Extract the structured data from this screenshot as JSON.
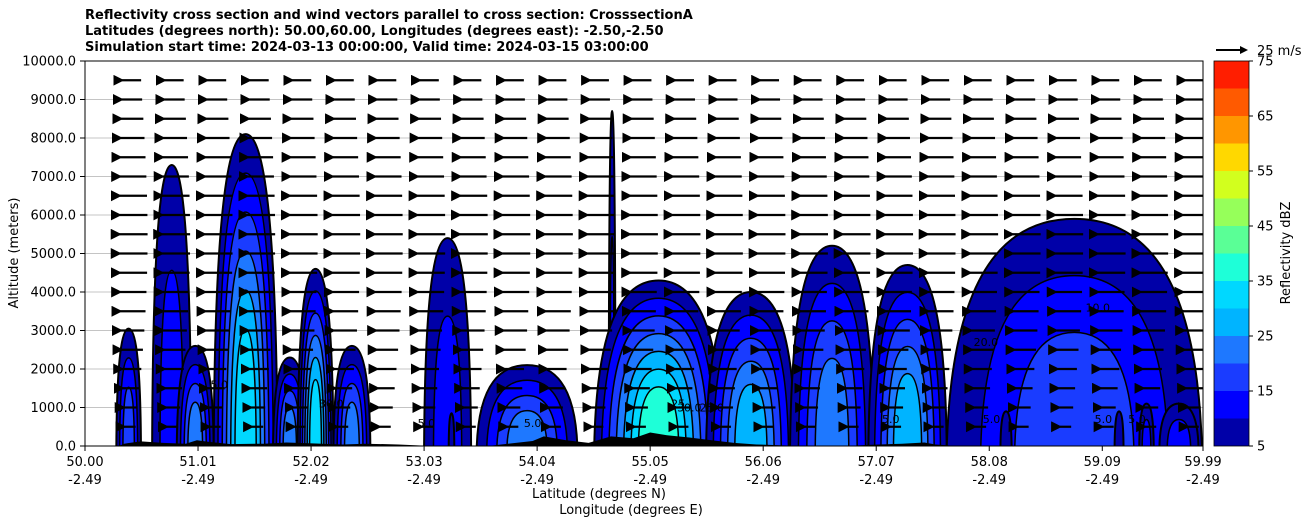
{
  "chart_data": {
    "type": "contour",
    "title_lines": [
      "Reflectivity cross section and wind vectors parallel to cross section: CrosssectionA",
      "Latitudes (degrees north): 50.00,60.00, Longitudes (degrees east): -2.50,-2.50",
      "Simulation start time: 2024-03-13 00:00:00, Valid time: 2024-03-15 03:00:00"
    ],
    "ylabel": "Altitude (meters)",
    "xlabel_lat": "Latitude (degrees N)",
    "xlabel_lon": "Longitude (degrees E)",
    "ylim": [
      0,
      10000
    ],
    "xlim": [
      50.0,
      59.99
    ],
    "y_ticks": [
      "0.0",
      "1000.0",
      "2000.0",
      "3000.0",
      "4000.0",
      "5000.0",
      "6000.0",
      "7000.0",
      "8000.0",
      "9000.0",
      "10000.0"
    ],
    "y_tick_values": [
      0,
      1000,
      2000,
      3000,
      4000,
      5000,
      6000,
      7000,
      8000,
      9000,
      10000
    ],
    "x_tick_values": [
      50.0,
      51.01,
      52.02,
      53.03,
      54.04,
      55.05,
      56.06,
      57.07,
      58.08,
      59.09,
      59.99
    ],
    "x_ticks_lat": [
      "50.00",
      "51.01",
      "52.02",
      "53.03",
      "54.04",
      "55.05",
      "56.06",
      "57.07",
      "58.08",
      "59.09",
      "59.99"
    ],
    "x_ticks_lon": [
      "-2.49",
      "-2.49",
      "-2.49",
      "-2.49",
      "-2.49",
      "-2.49",
      "-2.49",
      "-2.49",
      "-2.49",
      "-2.49",
      "-2.49"
    ],
    "colorbar": {
      "label": "Reflectivity dBZ",
      "range": [
        5,
        75
      ],
      "levels": [
        5,
        10,
        15,
        20,
        25,
        30,
        35,
        40,
        45,
        50,
        55,
        60,
        65,
        70,
        75
      ],
      "tick_labels": [
        "5",
        "15",
        "25",
        "35",
        "45",
        "55",
        "65",
        "75"
      ],
      "tick_values": [
        5,
        15,
        25,
        35,
        45,
        55,
        65,
        75
      ],
      "colors": [
        "#0000a8",
        "#0000ff",
        "#1a3cff",
        "#1e78ff",
        "#00b4ff",
        "#00d8ff",
        "#1effd8",
        "#5aff96",
        "#96ff5a",
        "#d2ff1e",
        "#ffd800",
        "#ff9600",
        "#ff5a00",
        "#ff1e00",
        "#a80000"
      ]
    },
    "wind_key": {
      "label": "25 m/s",
      "speed": 25
    },
    "terrain_color": "#000000",
    "cells": [
      {
        "x0": 50.28,
        "x1": 50.5,
        "ztop": 3050,
        "max_dbz": 18
      },
      {
        "x0": 50.6,
        "x1": 50.95,
        "ztop": 7300,
        "max_dbz": 12
      },
      {
        "x0": 50.82,
        "x1": 51.15,
        "ztop": 2600,
        "max_dbz": 22
      },
      {
        "x0": 51.15,
        "x1": 51.72,
        "ztop": 8100,
        "max_dbz": 30
      },
      {
        "x0": 51.68,
        "x1": 51.98,
        "ztop": 2300,
        "max_dbz": 22
      },
      {
        "x0": 51.9,
        "x1": 52.22,
        "ztop": 4600,
        "max_dbz": 30
      },
      {
        "x0": 52.22,
        "x1": 52.55,
        "ztop": 2600,
        "max_dbz": 24
      },
      {
        "x0": 53.03,
        "x1": 53.45,
        "ztop": 5400,
        "max_dbz": 12
      },
      {
        "x0": 53.25,
        "x1": 53.3,
        "ztop": 850,
        "max_dbz": 8
      },
      {
        "x0": 53.5,
        "x1": 54.4,
        "ztop": 2100,
        "max_dbz": 24
      },
      {
        "x0": 54.68,
        "x1": 54.74,
        "ztop": 8700,
        "max_dbz": 10
      },
      {
        "x0": 54.55,
        "x1": 55.7,
        "ztop": 4300,
        "max_dbz": 35
      },
      {
        "x0": 55.55,
        "x1": 56.35,
        "ztop": 4000,
        "max_dbz": 26
      },
      {
        "x0": 56.3,
        "x1": 57.05,
        "ztop": 5200,
        "max_dbz": 22
      },
      {
        "x0": 57.0,
        "x1": 57.7,
        "ztop": 4700,
        "max_dbz": 26
      },
      {
        "x0": 57.7,
        "x1": 59.98,
        "ztop": 5900,
        "max_dbz": 18
      },
      {
        "x0": 58.18,
        "x1": 58.28,
        "ztop": 900,
        "max_dbz": 8
      },
      {
        "x0": 59.2,
        "x1": 59.28,
        "ztop": 900,
        "max_dbz": 8
      },
      {
        "x0": 59.42,
        "x1": 59.55,
        "ztop": 1100,
        "max_dbz": 10
      },
      {
        "x0": 59.6,
        "x1": 59.95,
        "ztop": 1100,
        "max_dbz": 12
      }
    ],
    "contour_labels": [
      {
        "text": "5.0",
        "x": 54.0,
        "z": 500
      },
      {
        "text": "5.0",
        "x": 51.2,
        "z": 1500
      },
      {
        "text": "5.0",
        "x": 53.05,
        "z": 500
      },
      {
        "text": "30.0",
        "x": 52.2,
        "z": 1000
      },
      {
        "text": "25",
        "x": 55.3,
        "z": 1000
      },
      {
        "text": "25.0",
        "x": 55.6,
        "z": 900
      },
      {
        "text": "30.0",
        "x": 55.4,
        "z": 900
      },
      {
        "text": "5.0",
        "x": 57.2,
        "z": 600
      },
      {
        "text": "5.0",
        "x": 58.1,
        "z": 600
      },
      {
        "text": "5.0",
        "x": 59.1,
        "z": 600
      },
      {
        "text": "5.0",
        "x": 59.4,
        "z": 600
      },
      {
        "text": "20.0",
        "x": 58.05,
        "z": 2600
      },
      {
        "text": "10.0",
        "x": 59.05,
        "z": 3500
      }
    ]
  }
}
